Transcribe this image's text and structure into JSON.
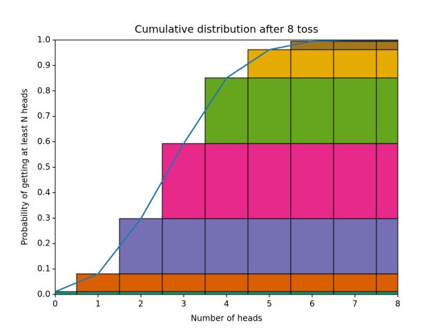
{
  "chart_data": {
    "type": "bar",
    "title": "Cumulative distribution after 8 toss",
    "xlabel": "Number of heads",
    "ylabel": "Probability of getting at least N heads",
    "x": [
      0,
      1,
      2,
      3,
      4,
      5,
      6,
      7,
      8
    ],
    "bar_width": 1,
    "series": [
      {
        "type": "bar",
        "color": "#1b9e77",
        "values": [
          0.011,
          0.011,
          0.011,
          0.011,
          0.011,
          0.011,
          0.011,
          0.011,
          0.011
        ]
      },
      {
        "type": "bar",
        "color": "#d95f02",
        "values": [
          null,
          0.07,
          0.07,
          0.07,
          0.07,
          0.07,
          0.07,
          0.07,
          0.07
        ]
      },
      {
        "type": "bar",
        "color": "#7570b3",
        "values": [
          null,
          null,
          0.217,
          0.217,
          0.217,
          0.217,
          0.217,
          0.217,
          0.217
        ]
      },
      {
        "type": "bar",
        "color": "#e7298a",
        "values": [
          null,
          null,
          null,
          0.295,
          0.295,
          0.295,
          0.295,
          0.295,
          0.295
        ]
      },
      {
        "type": "bar",
        "color": "#66a61e",
        "values": [
          null,
          null,
          null,
          null,
          0.258,
          0.258,
          0.258,
          0.258,
          0.258
        ]
      },
      {
        "type": "bar",
        "color": "#e6ab02",
        "values": [
          null,
          null,
          null,
          null,
          null,
          0.111,
          0.111,
          0.111,
          0.111
        ]
      },
      {
        "type": "bar",
        "color": "#a6761d",
        "values": [
          null,
          null,
          null,
          null,
          null,
          null,
          0.033,
          0.033,
          0.033
        ]
      },
      {
        "type": "bar",
        "color": "#666666",
        "values": [
          null,
          null,
          null,
          null,
          null,
          null,
          null,
          0.005,
          0.005
        ]
      },
      {
        "type": "line",
        "color": "#1f77b4",
        "values": [
          0.011,
          0.081,
          0.298,
          0.593,
          0.851,
          0.962,
          0.995,
          1.0,
          1.0
        ]
      }
    ],
    "xlim": [
      0,
      8
    ],
    "ylim": [
      0,
      1
    ],
    "xticks": [
      0,
      1,
      2,
      3,
      4,
      5,
      6,
      7,
      8
    ],
    "yticks": [
      {
        "value": 0,
        "label": "0.0"
      },
      0.1,
      0.2,
      0.3,
      0.4,
      0.5,
      0.6,
      0.7,
      0.8,
      0.9,
      {
        "value": 1,
        "label": "1.0"
      }
    ],
    "grid": false
  }
}
